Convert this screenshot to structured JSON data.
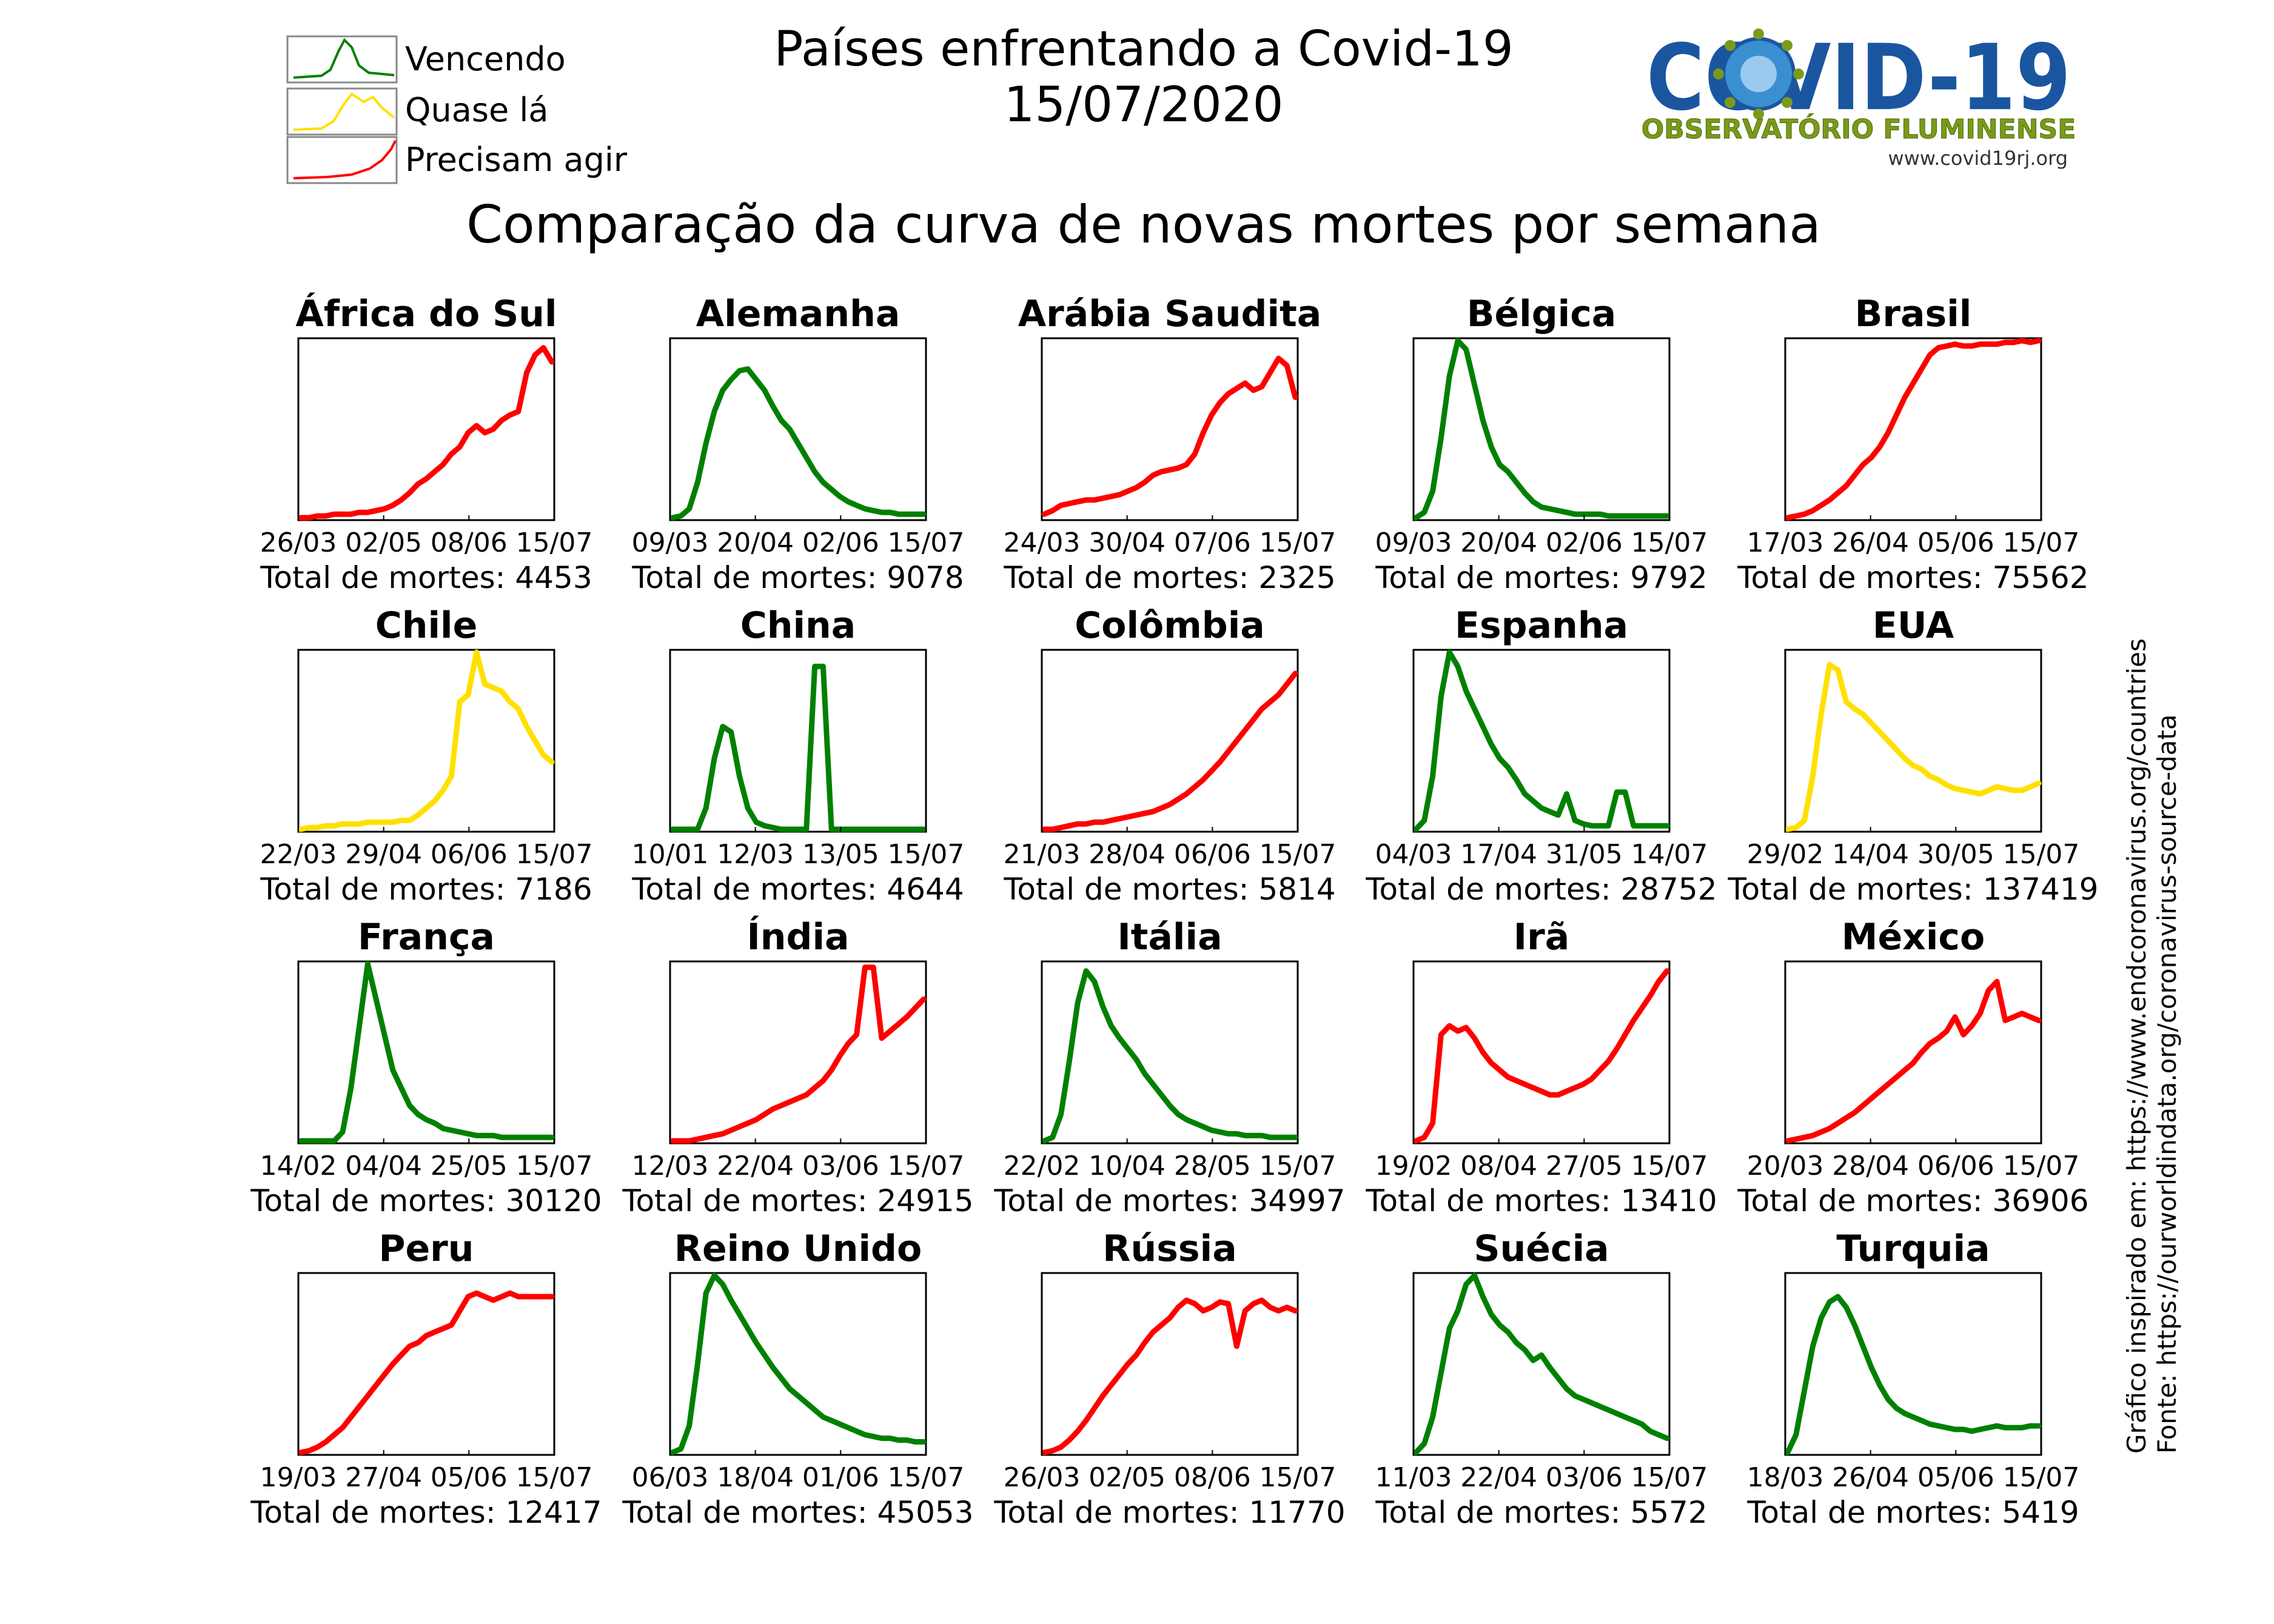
{
  "header": {
    "title_line1": "Países enfrentando a Covid-19",
    "title_line2": "15/07/2020",
    "subtitle": "Comparação da curva de novas mortes por semana"
  },
  "legend": [
    {
      "label": "Vencendo",
      "color": "#008000"
    },
    {
      "label": "Quase lá",
      "color": "#ffe000"
    },
    {
      "label": "Precisam agir",
      "color": "#ff0000"
    }
  ],
  "logo": {
    "word": "COVID-19",
    "line2": "OBSERVATÓRIO FLUMINENSE",
    "url": "www.covid19rj.org",
    "color_blue": "#1a56a0",
    "color_green": "#7a9a1a"
  },
  "side_notes": {
    "line1": "Gráfico inspirado em: https://www.endcoronavirus.org/countries",
    "line2": "Fonte: https://ourworldindata.org/coronavirus-source-data"
  },
  "total_prefix": "Total de mortes: ",
  "colors": {
    "green": "#008000",
    "yellow": "#ffe000",
    "red": "#ff0000"
  },
  "chart_data": [
    {
      "type": "line",
      "title": "África do Sul",
      "status": "red",
      "x_ticks": [
        "26/03",
        "02/05",
        "08/06",
        "15/07"
      ],
      "total": "4453",
      "values": [
        0,
        0,
        0.01,
        0.01,
        0.02,
        0.02,
        0.02,
        0.03,
        0.03,
        0.04,
        0.05,
        0.07,
        0.1,
        0.14,
        0.19,
        0.22,
        0.26,
        0.3,
        0.36,
        0.4,
        0.48,
        0.52,
        0.48,
        0.5,
        0.55,
        0.58,
        0.6,
        0.82,
        0.92,
        0.96,
        0.88
      ]
    },
    {
      "type": "line",
      "title": "Alemanha",
      "status": "green",
      "x_ticks": [
        "09/03",
        "20/04",
        "02/06",
        "15/07"
      ],
      "total": "9078",
      "values": [
        0,
        0.01,
        0.05,
        0.2,
        0.42,
        0.6,
        0.72,
        0.78,
        0.83,
        0.84,
        0.78,
        0.72,
        0.63,
        0.55,
        0.5,
        0.42,
        0.34,
        0.26,
        0.2,
        0.16,
        0.12,
        0.09,
        0.07,
        0.05,
        0.04,
        0.03,
        0.03,
        0.02,
        0.02,
        0.02,
        0.02
      ]
    },
    {
      "type": "line",
      "title": "Arábia Saudita",
      "status": "red",
      "x_ticks": [
        "24/03",
        "30/04",
        "07/06",
        "15/07"
      ],
      "total": "2325",
      "values": [
        0.02,
        0.04,
        0.07,
        0.08,
        0.09,
        0.1,
        0.1,
        0.11,
        0.12,
        0.13,
        0.15,
        0.17,
        0.2,
        0.24,
        0.26,
        0.27,
        0.28,
        0.3,
        0.36,
        0.48,
        0.58,
        0.65,
        0.7,
        0.73,
        0.76,
        0.72,
        0.74,
        0.82,
        0.9,
        0.86,
        0.68
      ]
    },
    {
      "type": "line",
      "title": "Bélgica",
      "status": "green",
      "x_ticks": [
        "09/03",
        "20/04",
        "02/06",
        "15/07"
      ],
      "total": "9792",
      "values": [
        0,
        0.03,
        0.15,
        0.45,
        0.8,
        1.0,
        0.95,
        0.75,
        0.55,
        0.4,
        0.3,
        0.26,
        0.2,
        0.14,
        0.09,
        0.06,
        0.05,
        0.04,
        0.03,
        0.02,
        0.02,
        0.02,
        0.02,
        0.01,
        0.01,
        0.01,
        0.01,
        0.01,
        0.01,
        0.01,
        0.01
      ]
    },
    {
      "type": "line",
      "title": "Brasil",
      "status": "red",
      "x_ticks": [
        "17/03",
        "26/04",
        "05/06",
        "15/07"
      ],
      "total": "75562",
      "values": [
        0,
        0.01,
        0.02,
        0.04,
        0.07,
        0.1,
        0.14,
        0.18,
        0.24,
        0.3,
        0.34,
        0.4,
        0.48,
        0.58,
        0.68,
        0.76,
        0.84,
        0.92,
        0.96,
        0.97,
        0.98,
        0.97,
        0.97,
        0.98,
        0.98,
        0.98,
        0.99,
        0.99,
        1.0,
        0.99,
        1.0
      ]
    },
    {
      "type": "line",
      "title": "Chile",
      "status": "yellow",
      "x_ticks": [
        "22/03",
        "29/04",
        "06/06",
        "15/07"
      ],
      "total": "7186",
      "values": [
        0,
        0.01,
        0.01,
        0.02,
        0.02,
        0.03,
        0.03,
        0.03,
        0.04,
        0.04,
        0.04,
        0.04,
        0.05,
        0.05,
        0.08,
        0.12,
        0.16,
        0.22,
        0.3,
        0.72,
        0.76,
        1.0,
        0.82,
        0.8,
        0.78,
        0.72,
        0.68,
        0.58,
        0.5,
        0.42,
        0.38
      ]
    },
    {
      "type": "line",
      "title": "China",
      "status": "green",
      "x_ticks": [
        "10/01",
        "12/03",
        "13/05",
        "15/07"
      ],
      "total": "4644",
      "values": [
        0,
        0,
        0,
        0,
        0.12,
        0.4,
        0.58,
        0.55,
        0.3,
        0.12,
        0.04,
        0.02,
        0.01,
        0,
        0,
        0,
        0,
        0.92,
        0.92,
        0,
        0,
        0,
        0,
        0,
        0,
        0,
        0,
        0,
        0,
        0,
        0
      ]
    },
    {
      "type": "line",
      "title": "Colômbia",
      "status": "red",
      "x_ticks": [
        "21/03",
        "28/04",
        "06/06",
        "15/07"
      ],
      "total": "5814",
      "values": [
        0,
        0,
        0.01,
        0.02,
        0.03,
        0.03,
        0.04,
        0.04,
        0.05,
        0.06,
        0.07,
        0.08,
        0.09,
        0.1,
        0.12,
        0.14,
        0.17,
        0.2,
        0.24,
        0.28,
        0.33,
        0.38,
        0.44,
        0.5,
        0.56,
        0.62,
        0.68,
        0.72,
        0.76,
        0.82,
        0.88
      ]
    },
    {
      "type": "line",
      "title": "Espanha",
      "status": "green",
      "x_ticks": [
        "04/03",
        "17/04",
        "31/05",
        "14/07"
      ],
      "total": "28752",
      "values": [
        0,
        0.05,
        0.3,
        0.75,
        1.0,
        0.92,
        0.78,
        0.68,
        0.58,
        0.48,
        0.4,
        0.35,
        0.28,
        0.2,
        0.16,
        0.12,
        0.1,
        0.08,
        0.2,
        0.05,
        0.03,
        0.02,
        0.02,
        0.02,
        0.21,
        0.21,
        0.02,
        0.02,
        0.02,
        0.02,
        0.02
      ]
    },
    {
      "type": "line",
      "title": "EUA",
      "status": "yellow",
      "x_ticks": [
        "29/02",
        "14/04",
        "30/05",
        "15/07"
      ],
      "total": "137419",
      "values": [
        0,
        0.01,
        0.05,
        0.3,
        0.65,
        0.93,
        0.9,
        0.72,
        0.68,
        0.65,
        0.6,
        0.55,
        0.5,
        0.45,
        0.4,
        0.36,
        0.34,
        0.3,
        0.28,
        0.25,
        0.23,
        0.22,
        0.21,
        0.2,
        0.22,
        0.24,
        0.23,
        0.22,
        0.22,
        0.24,
        0.26
      ]
    },
    {
      "type": "line",
      "title": "França",
      "status": "green",
      "x_ticks": [
        "14/02",
        "04/04",
        "25/05",
        "15/07"
      ],
      "total": "30120",
      "values": [
        0,
        0,
        0,
        0,
        0,
        0.05,
        0.3,
        0.65,
        1.0,
        0.8,
        0.6,
        0.4,
        0.3,
        0.2,
        0.15,
        0.12,
        0.1,
        0.07,
        0.06,
        0.05,
        0.04,
        0.03,
        0.03,
        0.03,
        0.02,
        0.02,
        0.02,
        0.02,
        0.02,
        0.02,
        0.02
      ]
    },
    {
      "type": "line",
      "title": "Índia",
      "status": "red",
      "x_ticks": [
        "12/03",
        "22/04",
        "03/06",
        "15/07"
      ],
      "total": "24915",
      "values": [
        0,
        0,
        0,
        0.01,
        0.02,
        0.03,
        0.04,
        0.06,
        0.08,
        0.1,
        0.12,
        0.15,
        0.18,
        0.2,
        0.22,
        0.24,
        0.26,
        0.3,
        0.34,
        0.4,
        0.48,
        0.55,
        0.6,
        0.98,
        0.98,
        0.58,
        0.62,
        0.66,
        0.7,
        0.75,
        0.8
      ]
    },
    {
      "type": "line",
      "title": "Itália",
      "status": "green",
      "x_ticks": [
        "22/02",
        "10/04",
        "28/05",
        "15/07"
      ],
      "total": "34997",
      "values": [
        0,
        0.02,
        0.15,
        0.45,
        0.78,
        0.96,
        0.9,
        0.76,
        0.65,
        0.58,
        0.52,
        0.46,
        0.38,
        0.32,
        0.26,
        0.2,
        0.15,
        0.12,
        0.1,
        0.08,
        0.06,
        0.05,
        0.04,
        0.04,
        0.03,
        0.03,
        0.03,
        0.02,
        0.02,
        0.02,
        0.02
      ]
    },
    {
      "type": "line",
      "title": "Irã",
      "status": "red",
      "x_ticks": [
        "19/02",
        "08/04",
        "27/05",
        "15/07"
      ],
      "total": "13410",
      "values": [
        0,
        0.02,
        0.1,
        0.6,
        0.65,
        0.62,
        0.64,
        0.58,
        0.5,
        0.44,
        0.4,
        0.36,
        0.34,
        0.32,
        0.3,
        0.28,
        0.26,
        0.26,
        0.28,
        0.3,
        0.32,
        0.35,
        0.4,
        0.45,
        0.52,
        0.6,
        0.68,
        0.75,
        0.82,
        0.9,
        0.96
      ]
    },
    {
      "type": "line",
      "title": "México",
      "status": "red",
      "x_ticks": [
        "20/03",
        "28/04",
        "06/06",
        "15/07"
      ],
      "total": "36906",
      "values": [
        0,
        0.01,
        0.02,
        0.03,
        0.05,
        0.07,
        0.1,
        0.13,
        0.16,
        0.2,
        0.24,
        0.28,
        0.32,
        0.36,
        0.4,
        0.44,
        0.5,
        0.55,
        0.58,
        0.62,
        0.7,
        0.6,
        0.65,
        0.72,
        0.85,
        0.9,
        0.68,
        0.7,
        0.72,
        0.7,
        0.68
      ]
    },
    {
      "type": "line",
      "title": "Peru",
      "status": "red",
      "x_ticks": [
        "19/03",
        "27/04",
        "05/06",
        "15/07"
      ],
      "total": "12417",
      "values": [
        0,
        0.01,
        0.03,
        0.06,
        0.1,
        0.14,
        0.2,
        0.26,
        0.32,
        0.38,
        0.44,
        0.5,
        0.55,
        0.6,
        0.62,
        0.66,
        0.68,
        0.7,
        0.72,
        0.8,
        0.88,
        0.9,
        0.88,
        0.86,
        0.88,
        0.9,
        0.88,
        0.88,
        0.88,
        0.88,
        0.88
      ]
    },
    {
      "type": "line",
      "title": "Reino Unido",
      "status": "green",
      "x_ticks": [
        "06/03",
        "18/04",
        "01/06",
        "15/07"
      ],
      "total": "45053",
      "values": [
        0,
        0.02,
        0.15,
        0.5,
        0.9,
        1.0,
        0.95,
        0.86,
        0.78,
        0.7,
        0.62,
        0.55,
        0.48,
        0.42,
        0.36,
        0.32,
        0.28,
        0.24,
        0.2,
        0.18,
        0.16,
        0.14,
        0.12,
        0.1,
        0.09,
        0.08,
        0.08,
        0.07,
        0.07,
        0.06,
        0.06
      ]
    },
    {
      "type": "line",
      "title": "Rússia",
      "status": "red",
      "x_ticks": [
        "26/03",
        "02/05",
        "08/06",
        "15/07"
      ],
      "total": "11770",
      "values": [
        0,
        0.01,
        0.03,
        0.07,
        0.12,
        0.18,
        0.25,
        0.32,
        0.38,
        0.44,
        0.5,
        0.55,
        0.62,
        0.68,
        0.72,
        0.76,
        0.82,
        0.86,
        0.84,
        0.8,
        0.82,
        0.85,
        0.84,
        0.6,
        0.8,
        0.84,
        0.86,
        0.82,
        0.8,
        0.82,
        0.8
      ]
    },
    {
      "type": "line",
      "title": "Suécia",
      "status": "green",
      "x_ticks": [
        "11/03",
        "22/04",
        "03/06",
        "15/07"
      ],
      "total": "5572",
      "values": [
        0,
        0.05,
        0.2,
        0.45,
        0.7,
        0.8,
        0.95,
        1.0,
        0.88,
        0.78,
        0.72,
        0.68,
        0.62,
        0.58,
        0.52,
        0.55,
        0.48,
        0.42,
        0.36,
        0.32,
        0.3,
        0.28,
        0.26,
        0.24,
        0.22,
        0.2,
        0.18,
        0.16,
        0.12,
        0.1,
        0.08
      ]
    },
    {
      "type": "line",
      "title": "Turquia",
      "status": "green",
      "x_ticks": [
        "18/03",
        "26/04",
        "05/06",
        "15/07"
      ],
      "total": "5419",
      "values": [
        0,
        0.1,
        0.35,
        0.6,
        0.76,
        0.85,
        0.88,
        0.82,
        0.72,
        0.6,
        0.48,
        0.38,
        0.3,
        0.25,
        0.22,
        0.2,
        0.18,
        0.16,
        0.15,
        0.14,
        0.13,
        0.13,
        0.12,
        0.13,
        0.14,
        0.15,
        0.14,
        0.14,
        0.14,
        0.15,
        0.15
      ]
    }
  ]
}
